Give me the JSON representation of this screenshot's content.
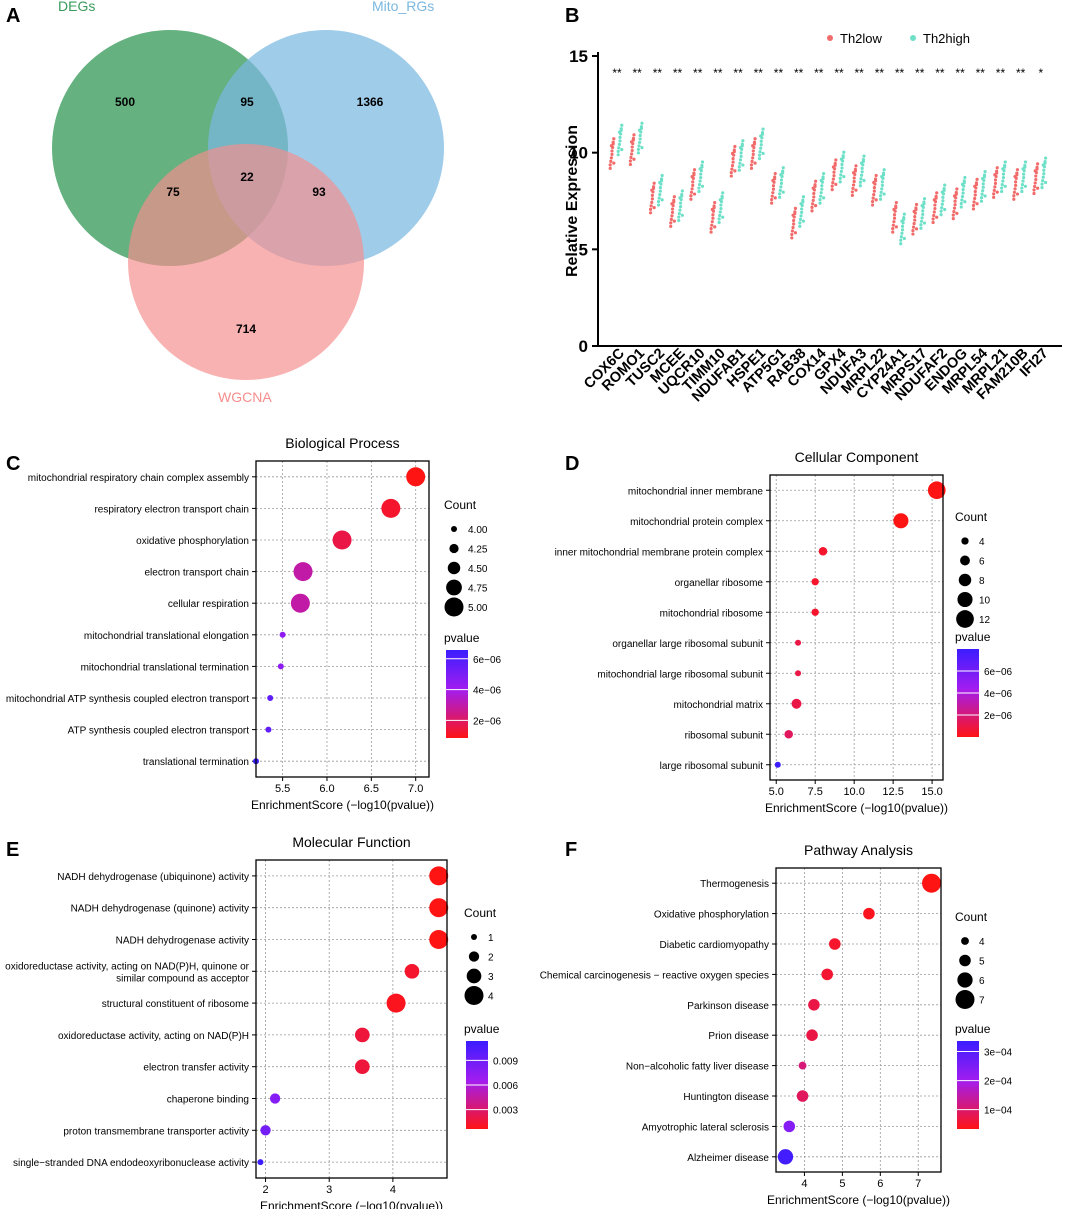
{
  "panels": {
    "A": {
      "letter": "A",
      "type": "venn",
      "sets": [
        {
          "name": "DEGs",
          "color": "#3a9b5c"
        },
        {
          "name": "Mito_RGs",
          "color": "#7ab8e0"
        },
        {
          "name": "WGCNA",
          "color": "#f68d8d"
        }
      ],
      "regions": {
        "degs_only": "500",
        "mito_only": "1366",
        "wgcna_only": "714",
        "degs_mito": "95",
        "degs_wgcna": "75",
        "mito_wgcna": "93",
        "all_three": "22"
      }
    },
    "B": {
      "letter": "B"
    },
    "C": {
      "letter": "C"
    },
    "D": {
      "letter": "D"
    },
    "E": {
      "letter": "E"
    },
    "F": {
      "letter": "F"
    }
  },
  "colors": {
    "low": "#f26b6b",
    "high": "#6fe0c8",
    "grid": "#9a9a9a",
    "p_high": "#3b1dff",
    "p_mid": "#a21df0",
    "p_low": "#ff1414"
  },
  "chart_data": [
    {
      "panel": "B",
      "type": "scatter",
      "title": "",
      "ylabel": "Relative Expression",
      "xlabel": "",
      "ylim": [
        0,
        15
      ],
      "yticks": [
        "0",
        "5",
        "10",
        "15"
      ],
      "legend": [
        "Th2low",
        "Th2high"
      ],
      "legend_position": "top-right",
      "categories": [
        "COX6C",
        "ROMO1",
        "TUSC2",
        "MCEE",
        "UQCR10",
        "TIMM10",
        "NDUFAB1",
        "HSPE1",
        "ATP5G1",
        "RAB38",
        "COX14",
        "GPX4",
        "NDUFA3",
        "MRPL22",
        "CYP24A1",
        "MRPS17",
        "NDUFAF2",
        "ENDOG",
        "MRPL54",
        "MRPL21",
        "FAM210B",
        "IFI27"
      ],
      "series": [
        {
          "name": "Th2low",
          "values": [
            10.0,
            10.2,
            7.7,
            7.0,
            8.4,
            6.7,
            9.6,
            10.0,
            8.2,
            6.4,
            7.8,
            8.9,
            8.6,
            8.1,
            6.7,
            6.6,
            7.2,
            7.4,
            7.9,
            8.5,
            8.4,
            8.7
          ]
        },
        {
          "name": "Th2high",
          "values": [
            10.7,
            10.8,
            8.1,
            7.3,
            8.8,
            7.2,
            9.9,
            10.5,
            8.5,
            7.0,
            8.2,
            9.3,
            9.1,
            8.4,
            6.1,
            6.9,
            7.6,
            8.0,
            8.3,
            8.8,
            8.8,
            9.0
          ]
        }
      ],
      "significance": [
        "**",
        "**",
        "**",
        "**",
        "**",
        "**",
        "**",
        "**",
        "**",
        "**",
        "**",
        "**",
        "**",
        "**",
        "**",
        "**",
        "**",
        "**",
        "**",
        "**",
        "**",
        "*"
      ]
    },
    {
      "panel": "C",
      "type": "scatter",
      "title": "Biological Process",
      "xlabel": "EnrichmentScore (−log10(pvalue))",
      "xlim": [
        5.2,
        7.15
      ],
      "xticks": [
        5.5,
        6.0,
        6.5,
        7.0
      ],
      "xticklabels": [
        "5.5",
        "6.0",
        "6.5",
        "7.0"
      ],
      "count_label": "Count",
      "count_legend": {
        "labels": [
          "4.00",
          "4.25",
          "4.50",
          "4.75",
          "5.00"
        ],
        "sizes": [
          4.0,
          4.25,
          4.5,
          4.75,
          5.0
        ]
      },
      "count_range": [
        4,
        5
      ],
      "pvalue_label": "pvalue",
      "pvalue_ticks": {
        "labels": [
          "6e−06",
          "4e−06",
          "2e−06"
        ],
        "positions": [
          0.9,
          0.55,
          0.2
        ]
      },
      "terms": [
        "mitochondrial respiratory chain complex assembly",
        "respiratory electron transport chain",
        "oxidative phosphorylation",
        "electron transport chain",
        "cellular respiration",
        "mitochondrial translational elongation",
        "mitochondrial translational termination",
        "mitochondrial ATP synthesis coupled electron transport",
        "ATP synthesis coupled electron transport",
        "translational termination"
      ],
      "x": [
        7.0,
        6.72,
        6.17,
        5.73,
        5.7,
        5.5,
        5.48,
        5.36,
        5.34,
        5.2
      ],
      "count": [
        5,
        5,
        5,
        5,
        5,
        4,
        4,
        4,
        4,
        4
      ],
      "p": [
        0.0,
        0.05,
        0.1,
        0.3,
        0.3,
        0.55,
        0.55,
        0.8,
        0.8,
        1.0
      ]
    },
    {
      "panel": "D",
      "type": "scatter",
      "title": "Cellular Component",
      "xlabel": "EnrichmentScore (−log10(pvalue))",
      "xlim": [
        4.6,
        15.7
      ],
      "xticks": [
        5.0,
        7.5,
        10.0,
        12.5,
        15.0
      ],
      "xticklabels": [
        "5.0",
        "7.5",
        "10.0",
        "12.5",
        "15.0"
      ],
      "count_label": "Count",
      "count_legend": {
        "labels": [
          "4",
          "6",
          "8",
          "10",
          "12"
        ],
        "sizes": [
          4,
          6,
          8,
          10,
          12
        ]
      },
      "count_range": [
        3,
        13
      ],
      "pvalue_label": "pvalue",
      "pvalue_ticks": {
        "labels": [
          "6e−06",
          "4e−06",
          "2e−06"
        ],
        "positions": [
          0.75,
          0.5,
          0.25
        ]
      },
      "terms": [
        "mitochondrial inner membrane",
        "mitochondrial protein complex",
        "inner mitochondrial membrane protein complex",
        "organellar ribosome",
        "mitochondrial ribosome",
        "organellar large ribosomal subunit",
        "mitochondrial large ribosomal subunit",
        "mitochondrial matrix",
        "ribosomal subunit",
        "large ribosomal subunit"
      ],
      "x": [
        15.3,
        13.0,
        8.0,
        7.5,
        7.5,
        6.4,
        6.4,
        6.3,
        5.8,
        5.1
      ],
      "count": [
        12,
        10,
        5,
        4,
        4,
        3,
        3,
        6,
        5,
        3
      ],
      "p": [
        0.0,
        0.0,
        0.05,
        0.05,
        0.05,
        0.1,
        0.1,
        0.1,
        0.15,
        1.0
      ]
    },
    {
      "panel": "E",
      "type": "scatter",
      "title": "Molecular Function",
      "xlabel": "EnrichmentScore (−log10(pvalue))",
      "xlim": [
        1.85,
        4.85
      ],
      "xticks": [
        2,
        3,
        4
      ],
      "xticklabels": [
        "2",
        "3",
        "4"
      ],
      "count_label": "Count",
      "count_legend": {
        "labels": [
          "1",
          "2",
          "3",
          "4"
        ],
        "sizes": [
          1,
          2,
          3,
          4
        ]
      },
      "count_range": [
        1,
        4
      ],
      "pvalue_label": "pvalue",
      "pvalue_ticks": {
        "labels": [
          "0.009",
          "0.006",
          "0.003"
        ],
        "positions": [
          0.78,
          0.5,
          0.22
        ]
      },
      "terms": [
        "NADH dehydrogenase (ubiquinone) activity",
        "NADH dehydrogenase (quinone) activity",
        "NADH dehydrogenase activity",
        "oxidoreductase activity, acting on NAD(P)H, quinone or\nsimilar compound as acceptor",
        "structural constituent of ribosome",
        "oxidoreductase activity, acting on NAD(P)H",
        "electron transfer activity",
        "chaperone binding",
        "proton transmembrane transporter activity",
        "single−stranded DNA endodeoxyribonuclease activity"
      ],
      "x": [
        4.72,
        4.72,
        4.72,
        4.3,
        4.05,
        3.52,
        3.52,
        2.15,
        2.0,
        1.92
      ],
      "count": [
        4,
        4,
        4,
        3,
        4,
        3,
        3,
        2,
        2,
        1
      ],
      "p": [
        0.0,
        0.0,
        0.0,
        0.05,
        0.02,
        0.08,
        0.08,
        0.6,
        0.7,
        1.0
      ]
    },
    {
      "panel": "F",
      "type": "scatter",
      "title": "Pathway Analysis",
      "xlabel": "EnrichmentScore (−log10(pvalue))",
      "xlim": [
        3.25,
        7.6
      ],
      "xticks": [
        4,
        5,
        6,
        7
      ],
      "xticklabels": [
        "4",
        "5",
        "6",
        "7"
      ],
      "count_label": "Count",
      "count_legend": {
        "labels": [
          "4",
          "5",
          "6",
          "7"
        ],
        "sizes": [
          4,
          5,
          6,
          7
        ]
      },
      "count_range": [
        3.5,
        7
      ],
      "pvalue_label": "pvalue",
      "pvalue_ticks": {
        "labels": [
          "3e−04",
          "2e−04",
          "1e−04"
        ],
        "positions": [
          0.88,
          0.55,
          0.22
        ]
      },
      "terms": [
        "Thermogenesis",
        "Oxidative phosphorylation",
        "Diabetic cardiomyopathy",
        "Chemical carcinogenesis − reactive oxygen species",
        "Parkinson disease",
        "Prion disease",
        "Non−alcoholic fatty liver disease",
        "Huntington disease",
        "Amyotrophic lateral sclerosis",
        "Alzheimer disease"
      ],
      "x": [
        7.35,
        5.7,
        4.8,
        4.6,
        4.25,
        4.2,
        3.95,
        3.95,
        3.6,
        3.5
      ],
      "count": [
        7,
        5,
        5,
        5,
        5,
        5,
        4,
        5,
        5,
        6
      ],
      "p": [
        0.0,
        0.02,
        0.05,
        0.06,
        0.1,
        0.1,
        0.2,
        0.15,
        0.6,
        0.95
      ]
    }
  ]
}
